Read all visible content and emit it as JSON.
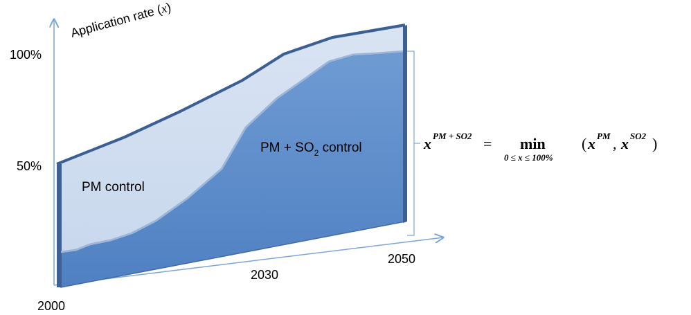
{
  "axis": {
    "y_title_text": "Application rate (",
    "y_title_var": "x",
    "y_title_close": ")",
    "y_tick_100": "100%",
    "y_tick_50": "50%",
    "x_tick_2000": "2000",
    "x_tick_2030": "2030",
    "x_tick_2050": "2050"
  },
  "regions": {
    "pm_label": "PM control",
    "pmso2_label_pre": "PM + SO",
    "pmso2_label_sub": "2",
    "pmso2_label_post": " control"
  },
  "formula": {
    "lhs_base": "x",
    "lhs_sup": "PM + SO2",
    "equals": "=",
    "op": "min",
    "op_sub": "0 ≤ x ≤ 100%",
    "args_open": "(",
    "arg1_base": "x",
    "arg1_sup": "PM",
    "comma": ",",
    "arg2_base": "x",
    "arg2_sup": "SO2",
    "args_close": ")"
  },
  "colors": {
    "pm_fill": "#cfdcef",
    "pmso2_fill": "#5b8ac8",
    "edge_dark": "#3a5f91",
    "axis": "#7aa6d8"
  }
}
